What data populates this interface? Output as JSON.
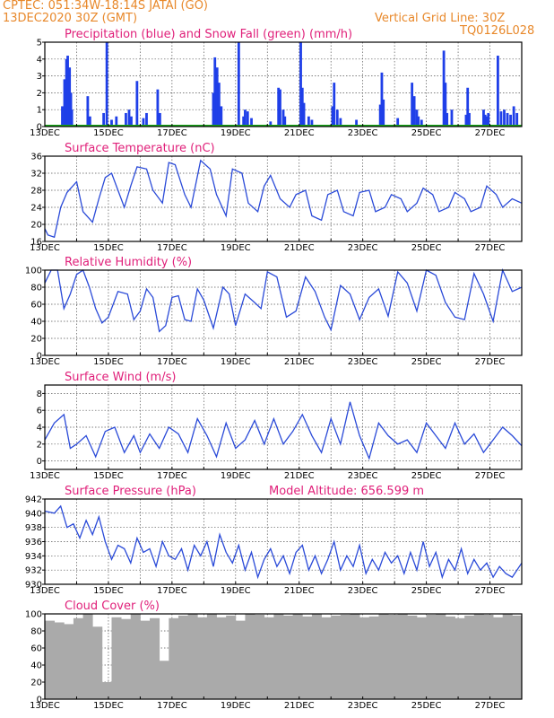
{
  "header": {
    "line1_left": "CPTEC:   051:34W-18:14S   JATAI (GO)",
    "line2_left": "13DEC2020 30Z (GMT)",
    "line1_right": "Vertical Grid Line: 30Z",
    "line2_right": "TQ0126L028"
  },
  "colors": {
    "precip": "#1f3fe8",
    "snow": "#18a818",
    "series_line": "#2a4ad8",
    "cloud": "#aaaaaa",
    "title": "#e0207a",
    "header": "#e8882a"
  },
  "x_axis": {
    "start_day": 13,
    "end_day": 28,
    "labels": [
      "13DEC",
      "15DEC",
      "17DEC",
      "19DEC",
      "21DEC",
      "23DEC",
      "25DEC",
      "27DEC"
    ],
    "label_days": [
      13,
      15,
      17,
      19,
      21,
      23,
      25,
      27
    ]
  },
  "chart_data": [
    {
      "type": "bar",
      "title": "Precipitation (blue) and Snow Fall (green) (mm/h)",
      "ylim": [
        0,
        5
      ],
      "yticks": [
        "0",
        "1",
        "2",
        "3",
        "4",
        "5"
      ],
      "series": [
        {
          "name": "Precipitation",
          "color": "blue",
          "x": [
            13.55,
            13.62,
            13.68,
            13.72,
            13.78,
            13.82,
            13.85,
            14.35,
            14.42,
            14.85,
            14.95,
            15.1,
            15.25,
            15.55,
            15.65,
            15.72,
            15.9,
            16.1,
            16.2,
            16.55,
            16.62,
            18.3,
            18.35,
            18.42,
            18.48,
            18.55,
            19.1,
            19.25,
            19.3,
            19.38,
            19.5,
            20.1,
            20.35,
            20.4,
            20.5,
            20.55,
            21.05,
            21.1,
            21.15,
            21.3,
            21.4,
            22.05,
            22.1,
            22.2,
            22.3,
            22.8,
            23.55,
            23.6,
            23.65,
            24.1,
            24.55,
            24.62,
            24.7,
            24.75,
            24.85,
            25.55,
            25.6,
            25.65,
            25.8,
            26.25,
            26.3,
            26.35,
            26.8,
            26.85,
            26.9,
            26.95,
            27.25,
            27.35,
            27.45,
            27.55,
            27.65,
            27.75,
            27.85
          ],
          "y": [
            1.2,
            2.8,
            4.0,
            4.2,
            3.5,
            2.0,
            1.0,
            1.8,
            0.6,
            0.8,
            5.0,
            0.4,
            0.6,
            0.8,
            1.0,
            0.6,
            2.7,
            0.5,
            0.8,
            2.2,
            0.8,
            2.0,
            4.1,
            3.5,
            2.6,
            1.2,
            5.0,
            0.6,
            1.0,
            0.9,
            0.5,
            0.3,
            2.3,
            2.2,
            1.0,
            0.6,
            5.0,
            2.3,
            1.4,
            0.6,
            0.4,
            1.2,
            2.6,
            1.0,
            0.5,
            0.4,
            1.3,
            3.2,
            1.6,
            0.5,
            2.6,
            1.8,
            1.0,
            0.6,
            0.4,
            4.5,
            2.6,
            0.8,
            1.0,
            0.7,
            2.3,
            0.8,
            1.0,
            0.7,
            0.6,
            0.8,
            4.2,
            0.9,
            1.0,
            0.8,
            0.7,
            1.2,
            0.8
          ]
        },
        {
          "name": "Snow Fall",
          "color": "green",
          "x": [
            13.0,
            28.0
          ],
          "y": [
            0,
            0
          ]
        }
      ]
    },
    {
      "type": "line",
      "title": "Surface Temperature (nC)",
      "ylim": [
        16,
        36
      ],
      "yticks": [
        "16",
        "20",
        "24",
        "28",
        "32",
        "36"
      ],
      "x": [
        13.0,
        13.1,
        13.3,
        13.5,
        13.7,
        14.0,
        14.2,
        14.5,
        14.7,
        14.9,
        15.1,
        15.3,
        15.5,
        15.7,
        15.9,
        16.2,
        16.4,
        16.7,
        16.9,
        17.1,
        17.4,
        17.6,
        17.9,
        18.2,
        18.4,
        18.7,
        18.9,
        19.2,
        19.4,
        19.7,
        19.9,
        20.1,
        20.4,
        20.7,
        20.9,
        21.2,
        21.4,
        21.7,
        21.9,
        22.2,
        22.4,
        22.7,
        22.9,
        23.2,
        23.4,
        23.7,
        23.9,
        24.2,
        24.4,
        24.7,
        24.9,
        25.2,
        25.4,
        25.7,
        25.9,
        26.2,
        26.4,
        26.7,
        26.9,
        27.2,
        27.4,
        27.7,
        28.0
      ],
      "y": [
        19,
        17.5,
        17,
        24,
        27.5,
        30,
        23,
        20.5,
        26,
        31,
        32,
        28,
        24,
        29,
        33.5,
        33,
        28,
        25,
        34.5,
        34,
        27,
        24,
        35,
        33,
        27,
        22,
        33,
        32,
        25,
        23,
        29,
        31.5,
        26,
        24,
        27,
        28,
        22,
        21,
        27,
        28,
        23,
        22,
        27.5,
        28,
        23,
        24,
        27,
        26,
        23,
        25,
        28.5,
        27,
        23,
        24,
        27.5,
        26,
        23,
        24,
        29,
        27,
        24,
        26,
        25
      ]
    },
    {
      "type": "line",
      "title": "Relative Humidity (%)",
      "ylim": [
        0,
        100
      ],
      "yticks": [
        "0",
        "20",
        "40",
        "60",
        "80",
        "100"
      ],
      "x": [
        13.0,
        13.2,
        13.4,
        13.6,
        13.8,
        14.0,
        14.2,
        14.4,
        14.6,
        14.8,
        15.0,
        15.3,
        15.6,
        15.8,
        16.0,
        16.2,
        16.4,
        16.6,
        16.8,
        17.0,
        17.2,
        17.4,
        17.6,
        17.8,
        18.0,
        18.3,
        18.6,
        18.8,
        19.0,
        19.3,
        19.6,
        19.8,
        20.0,
        20.3,
        20.6,
        20.9,
        21.2,
        21.5,
        21.8,
        22.0,
        22.3,
        22.6,
        22.9,
        23.2,
        23.5,
        23.8,
        24.1,
        24.4,
        24.7,
        25.0,
        25.3,
        25.6,
        25.9,
        26.2,
        26.5,
        26.8,
        27.1,
        27.4,
        27.7,
        28.0
      ],
      "y": [
        85,
        100,
        100,
        55,
        72,
        95,
        100,
        80,
        55,
        38,
        45,
        75,
        72,
        42,
        52,
        78,
        68,
        28,
        35,
        68,
        70,
        42,
        40,
        78,
        65,
        32,
        80,
        72,
        35,
        72,
        62,
        55,
        98,
        92,
        45,
        52,
        92,
        75,
        45,
        30,
        82,
        72,
        42,
        68,
        78,
        46,
        98,
        85,
        52,
        100,
        94,
        62,
        45,
        42,
        96,
        72,
        40,
        100,
        75,
        80
      ]
    },
    {
      "type": "line",
      "title": "Surface Wind (m/s)",
      "ylim": [
        -1,
        9
      ],
      "yticks": [
        "0",
        "2",
        "4",
        "6",
        "8"
      ],
      "x": [
        13.0,
        13.3,
        13.6,
        13.8,
        14.0,
        14.3,
        14.6,
        14.9,
        15.2,
        15.5,
        15.8,
        16.0,
        16.3,
        16.6,
        16.9,
        17.2,
        17.5,
        17.8,
        18.1,
        18.4,
        18.7,
        19.0,
        19.3,
        19.6,
        19.9,
        20.2,
        20.5,
        20.8,
        21.1,
        21.4,
        21.7,
        22.0,
        22.3,
        22.6,
        22.9,
        23.2,
        23.5,
        23.8,
        24.1,
        24.4,
        24.7,
        25.0,
        25.3,
        25.6,
        25.9,
        26.2,
        26.5,
        26.8,
        27.1,
        27.4,
        27.7,
        28.0
      ],
      "y": [
        2.5,
        4.5,
        5.5,
        1.5,
        2.0,
        3.0,
        0.5,
        3.5,
        4.0,
        1.0,
        3.0,
        1.0,
        3.2,
        1.5,
        4.0,
        3.2,
        1.0,
        5.0,
        3.0,
        0.5,
        4.5,
        1.5,
        2.5,
        4.8,
        2.0,
        5.0,
        2.0,
        3.5,
        5.5,
        3.0,
        1.0,
        5.0,
        2.0,
        7.0,
        3.0,
        0.3,
        4.5,
        3.0,
        2.0,
        2.5,
        1.0,
        4.5,
        3.0,
        1.5,
        4.5,
        2.0,
        3.2,
        1.0,
        2.5,
        4.0,
        3.0,
        1.8
      ]
    },
    {
      "type": "line",
      "title": "Surface Pressure (hPa)",
      "ylim": [
        930,
        942
      ],
      "yticks": [
        "930",
        "932",
        "934",
        "936",
        "938",
        "940",
        "942"
      ],
      "x": [
        13.0,
        13.3,
        13.5,
        13.7,
        13.9,
        14.1,
        14.3,
        14.5,
        14.7,
        14.9,
        15.1,
        15.3,
        15.5,
        15.7,
        15.9,
        16.1,
        16.3,
        16.5,
        16.7,
        16.9,
        17.1,
        17.3,
        17.5,
        17.7,
        17.9,
        18.1,
        18.3,
        18.5,
        18.7,
        18.9,
        19.1,
        19.3,
        19.5,
        19.7,
        19.9,
        20.1,
        20.3,
        20.5,
        20.7,
        20.9,
        21.1,
        21.3,
        21.5,
        21.7,
        21.9,
        22.1,
        22.3,
        22.5,
        22.7,
        22.9,
        23.1,
        23.3,
        23.5,
        23.7,
        23.9,
        24.1,
        24.3,
        24.5,
        24.7,
        24.9,
        25.1,
        25.3,
        25.5,
        25.7,
        25.9,
        26.1,
        26.3,
        26.5,
        26.7,
        26.9,
        27.1,
        27.3,
        27.5,
        27.7,
        28.0
      ],
      "y": [
        940.3,
        940.0,
        941.0,
        938.0,
        938.5,
        936.5,
        939.0,
        937.0,
        939.5,
        936.0,
        933.5,
        935.5,
        935.0,
        933.0,
        936.5,
        934.5,
        935.0,
        932.5,
        936.0,
        934.0,
        933.5,
        935.0,
        932.0,
        935.5,
        934.0,
        936.0,
        932.5,
        937.0,
        934.5,
        933.0,
        935.5,
        932.0,
        934.5,
        931.0,
        933.5,
        935.0,
        932.5,
        934.0,
        931.5,
        934.5,
        935.5,
        932.0,
        934.0,
        931.5,
        933.5,
        936.0,
        932.0,
        934.0,
        932.5,
        935.5,
        931.5,
        933.5,
        932.0,
        934.5,
        933.0,
        934.0,
        931.5,
        934.5,
        932.0,
        936.0,
        932.5,
        934.5,
        931.0,
        933.5,
        932.0,
        935.0,
        931.5,
        933.5,
        932.0,
        933.0,
        931.0,
        932.5,
        931.5,
        931.0,
        933.0
      ]
    },
    {
      "type": "bar",
      "title": "Cloud Cover (%)",
      "ylim": [
        0,
        100
      ],
      "yticks": [
        "0",
        "20",
        "40",
        "60",
        "80",
        "100"
      ],
      "x": [
        13.0,
        13.3,
        13.6,
        13.9,
        14.2,
        14.5,
        14.8,
        15.1,
        15.4,
        15.7,
        16.0,
        16.3,
        16.6,
        16.9,
        17.2,
        17.5,
        17.8,
        18.1,
        18.4,
        18.7,
        19.0,
        19.3,
        19.6,
        19.9,
        20.2,
        20.5,
        20.8,
        21.1,
        21.4,
        21.7,
        22.0,
        22.3,
        22.6,
        22.9,
        23.2,
        23.5,
        23.8,
        24.1,
        24.4,
        24.7,
        25.0,
        25.3,
        25.6,
        25.9,
        26.2,
        26.5,
        26.8,
        27.1,
        27.4,
        27.7
      ],
      "y": [
        92,
        90,
        88,
        95,
        100,
        85,
        20,
        96,
        94,
        100,
        92,
        95,
        45,
        95,
        98,
        100,
        96,
        100,
        96,
        98,
        92,
        100,
        99,
        96,
        100,
        98,
        100,
        97,
        100,
        96,
        98,
        99,
        100,
        96,
        97,
        100,
        99,
        100,
        98,
        96,
        99,
        100,
        97,
        95,
        98,
        100,
        99,
        96,
        100,
        98
      ]
    }
  ],
  "annotations": {
    "model_altitude": "Model Altitude: 656.599  m"
  }
}
